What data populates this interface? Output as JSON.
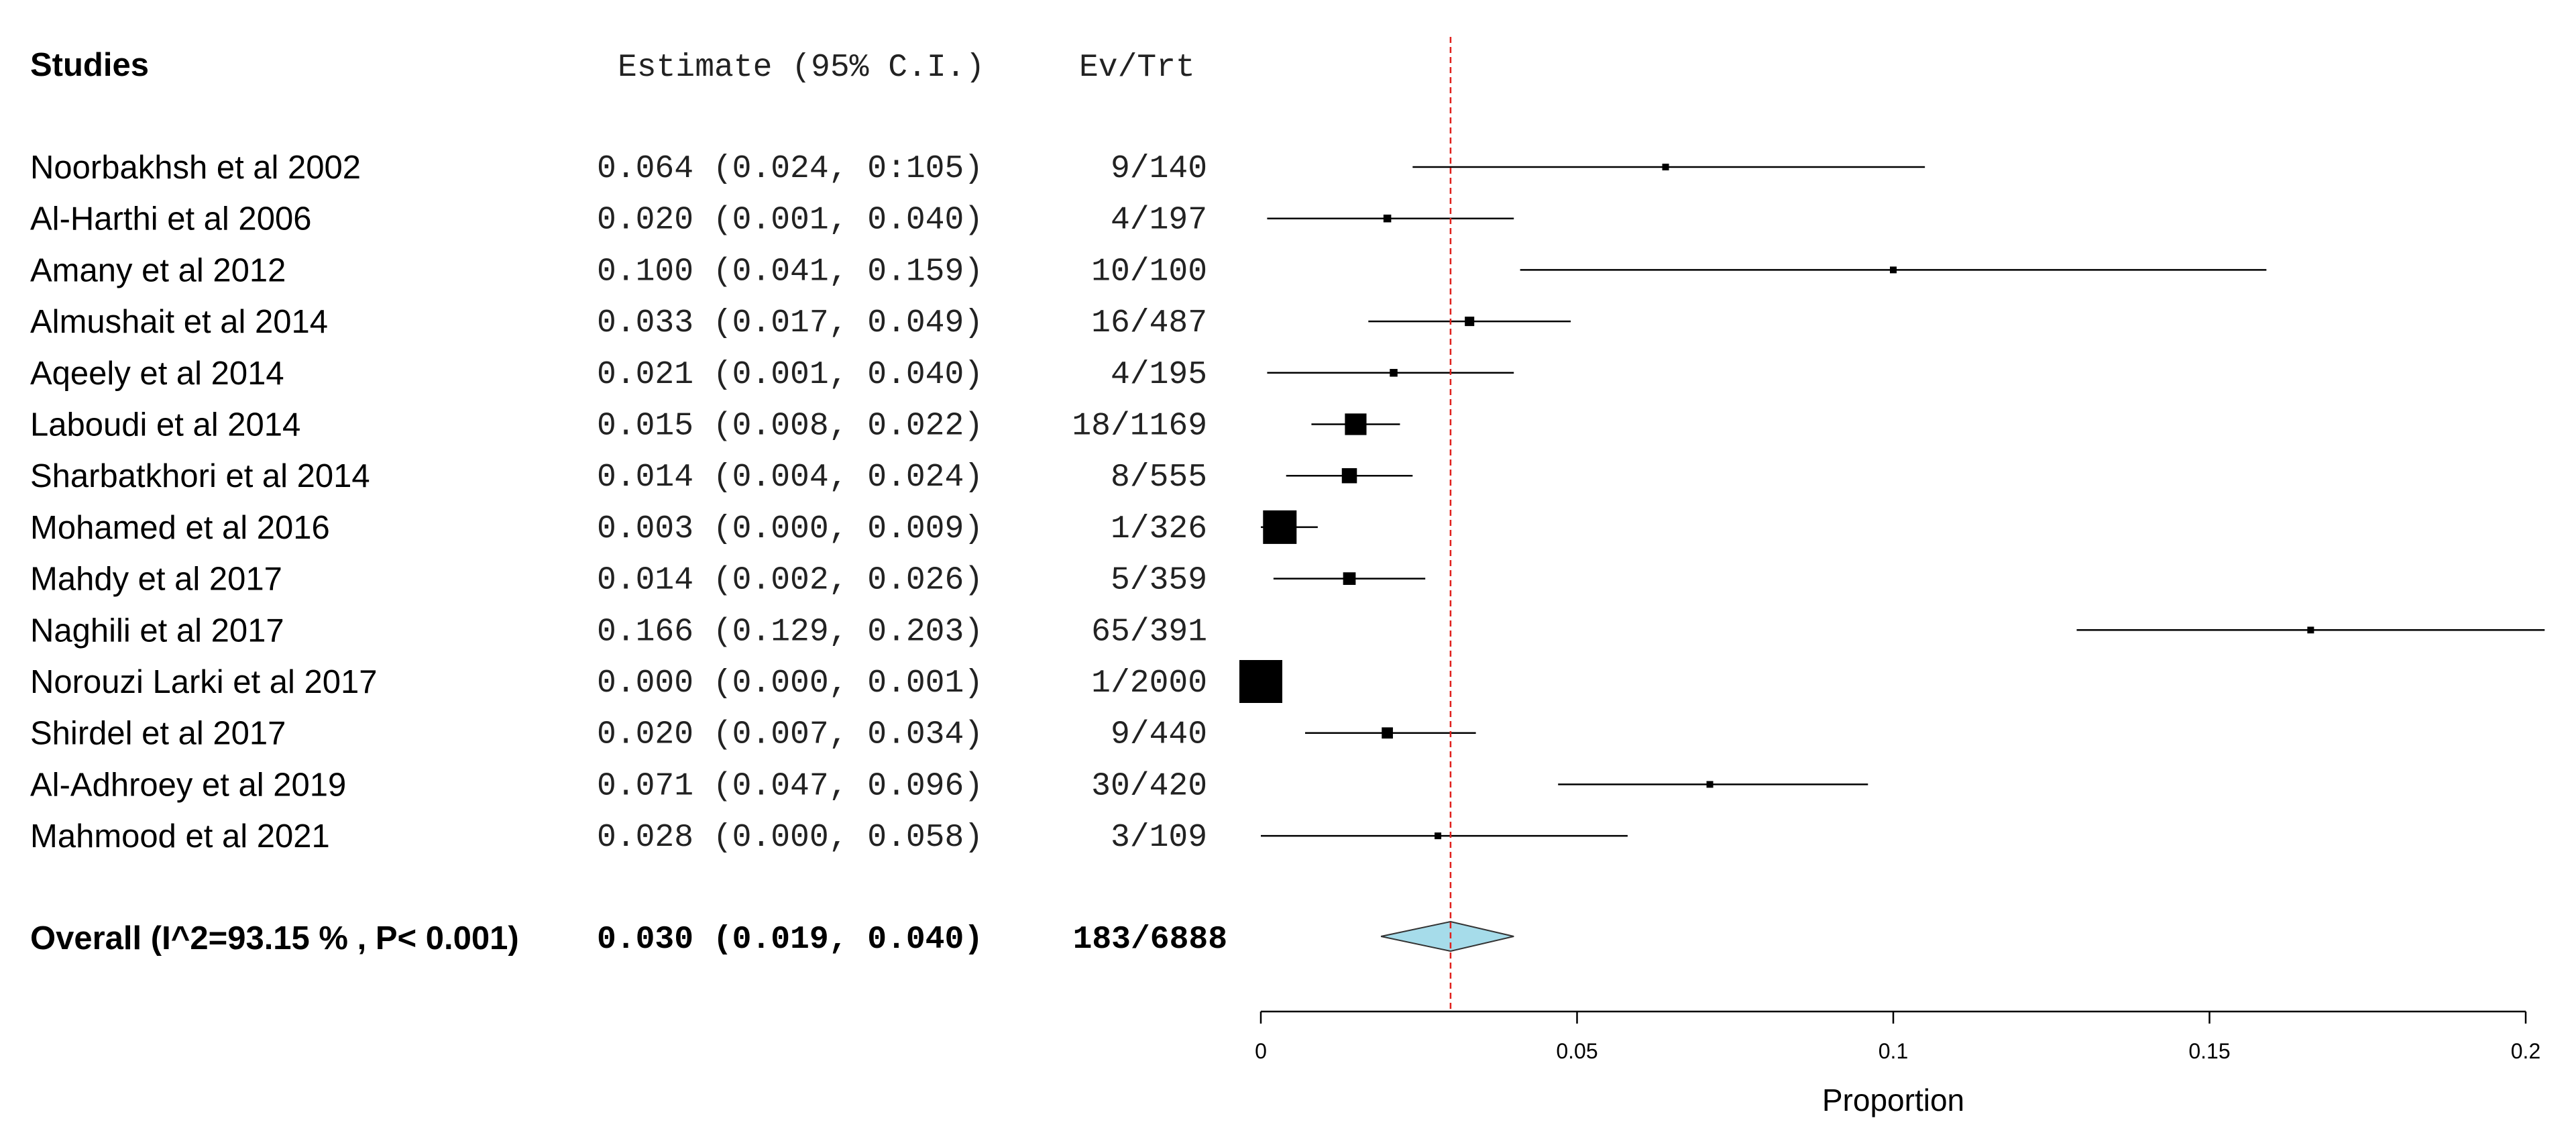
{
  "chart_data": {
    "type": "forest",
    "headers": {
      "studies": "Studies",
      "estimate": "Estimate (95% C.I.)",
      "ev_trt": "Ev/Trt"
    },
    "studies": [
      {
        "label": "Noorbakhsh et al 2002",
        "est": 0.064,
        "lo": 0.024,
        "hi": 0.105,
        "ci_text": "0.064 (0.024, 0:105)",
        "ev_trt": "9/140"
      },
      {
        "label": "Al-Harthi et al 2006",
        "est": 0.02,
        "lo": 0.001,
        "hi": 0.04,
        "ci_text": "0.020 (0.001, 0.040)",
        "ev_trt": "4/197"
      },
      {
        "label": "Amany et al 2012",
        "est": 0.1,
        "lo": 0.041,
        "hi": 0.159,
        "ci_text": "0.100 (0.041, 0.159)",
        "ev_trt": "10/100"
      },
      {
        "label": "Almushait et al 2014",
        "est": 0.033,
        "lo": 0.017,
        "hi": 0.049,
        "ci_text": "0.033 (0.017, 0.049)",
        "ev_trt": "16/487"
      },
      {
        "label": "Aqeely et al 2014",
        "est": 0.021,
        "lo": 0.001,
        "hi": 0.04,
        "ci_text": "0.021 (0.001, 0.040)",
        "ev_trt": "4/195"
      },
      {
        "label": "Laboudi et al 2014",
        "est": 0.015,
        "lo": 0.008,
        "hi": 0.022,
        "ci_text": "0.015 (0.008, 0.022)",
        "ev_trt": "18/1169"
      },
      {
        "label": "Sharbatkhori et al 2014",
        "est": 0.014,
        "lo": 0.004,
        "hi": 0.024,
        "ci_text": "0.014 (0.004, 0.024)",
        "ev_trt": "8/555"
      },
      {
        "label": "Mohamed et al 2016",
        "est": 0.003,
        "lo": 0.0,
        "hi": 0.009,
        "ci_text": "0.003 (0.000, 0.009)",
        "ev_trt": "1/326"
      },
      {
        "label": "Mahdy et al 2017",
        "est": 0.014,
        "lo": 0.002,
        "hi": 0.026,
        "ci_text": "0.014 (0.002, 0.026)",
        "ev_trt": "5/359"
      },
      {
        "label": "Naghili et al 2017",
        "est": 0.166,
        "lo": 0.129,
        "hi": 0.203,
        "ci_text": "0.166 (0.129, 0.203)",
        "ev_trt": "65/391"
      },
      {
        "label": "Norouzi Larki et al 2017",
        "est": 0.0,
        "lo": 0.0,
        "hi": 0.001,
        "ci_text": "0.000 (0.000, 0.001)",
        "ev_trt": "1/2000"
      },
      {
        "label": "Shirdel et al 2017",
        "est": 0.02,
        "lo": 0.007,
        "hi": 0.034,
        "ci_text": "0.020 (0.007, 0.034)",
        "ev_trt": "9/440"
      },
      {
        "label": "Al-Adhroey et al 2019",
        "est": 0.071,
        "lo": 0.047,
        "hi": 0.096,
        "ci_text": "0.071 (0.047, 0.096)",
        "ev_trt": "30/420"
      },
      {
        "label": "Mahmood et al 2021",
        "est": 0.028,
        "lo": 0.0,
        "hi": 0.058,
        "ci_text": "0.028 (0.000, 0.058)",
        "ev_trt": "3/109"
      }
    ],
    "overall": {
      "label": "Overall (I^2=93.15 % , P< 0.001)",
      "est": 0.03,
      "lo": 0.019,
      "hi": 0.04,
      "ci_text": "0.030 (0.019, 0.040)",
      "ev_trt": "183/6888"
    },
    "xaxis": {
      "label": "Proportion",
      "ticks": [
        0,
        0.05,
        0.1,
        0.15,
        0.2
      ],
      "tick_labels": [
        "0",
        "0.05",
        "0.1",
        "0.15",
        "0.2"
      ],
      "range": [
        0,
        0.2
      ]
    },
    "reference_line": 0.03,
    "colors": {
      "reference_line": "#e0201c",
      "diamond_fill": "#a6dcea",
      "marker": "#000000"
    }
  }
}
